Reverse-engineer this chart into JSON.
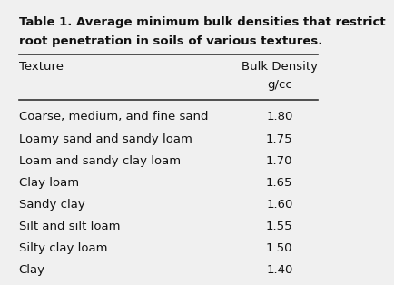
{
  "title_line1": "Table 1. Average minimum bulk densities that restrict",
  "title_line2": "root penetration in soils of various textures.",
  "col1_header": "Texture",
  "col2_header_line1": "Bulk Density",
  "col2_header_line2": "g/cc",
  "textures": [
    "Coarse, medium, and fine sand",
    "Loamy sand and sandy loam",
    "Loam and sandy clay loam",
    "Clay loam",
    "Sandy clay",
    "Silt and silt loam",
    "Silty clay loam",
    "Clay"
  ],
  "densities": [
    "1.80",
    "1.75",
    "1.70",
    "1.65",
    "1.60",
    "1.55",
    "1.50",
    "1.40"
  ],
  "bg_color": "#f0f0f0",
  "text_color": "#111111",
  "line_color": "#333333",
  "title_fontsize": 9.5,
  "header_fontsize": 9.5,
  "body_fontsize": 9.5
}
